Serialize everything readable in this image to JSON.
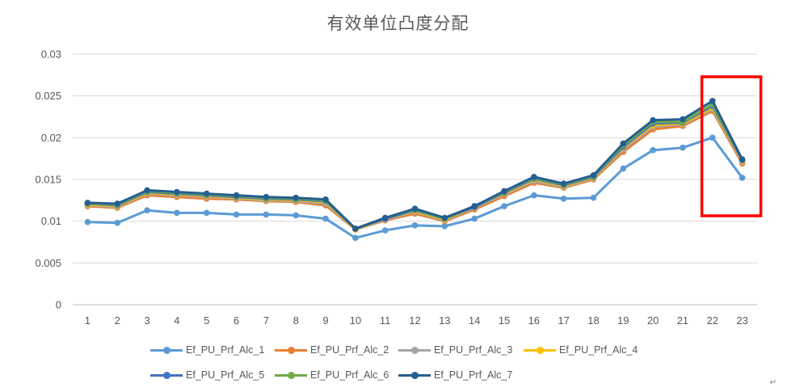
{
  "chart_data": {
    "type": "line",
    "title": "有效单位凸度分配",
    "xlabel": "",
    "ylabel": "",
    "categories": [
      "1",
      "2",
      "3",
      "4",
      "5",
      "6",
      "7",
      "8",
      "9",
      "10",
      "11",
      "12",
      "13",
      "14",
      "15",
      "16",
      "17",
      "18",
      "19",
      "20",
      "21",
      "22",
      "23"
    ],
    "ylim": [
      0,
      0.03
    ],
    "yticks": [
      "0",
      "0.005",
      "0.01",
      "0.015",
      "0.02",
      "0.025",
      "0.03"
    ],
    "grid": true,
    "legend_position": "bottom",
    "highlight": {
      "shape": "rectangle",
      "color": "#ff0000",
      "around_category": "23"
    },
    "series": [
      {
        "name": "Ef_PU_Prf_Alc_1",
        "color": "#5b9bd5",
        "values": [
          0.0099,
          0.0098,
          0.0113,
          0.011,
          0.011,
          0.0108,
          0.0108,
          0.0107,
          0.0103,
          0.008,
          0.0089,
          0.0095,
          0.0094,
          0.0103,
          0.0118,
          0.0131,
          0.0127,
          0.0128,
          0.0163,
          0.0185,
          0.0188,
          0.02,
          0.0152
        ]
      },
      {
        "name": "Ef_PU_Prf_Alc_2",
        "color": "#ed7d31",
        "values": [
          0.0118,
          0.0116,
          0.0131,
          0.0129,
          0.0127,
          0.0126,
          0.0124,
          0.0123,
          0.0119,
          0.009,
          0.0101,
          0.0109,
          0.01,
          0.0114,
          0.013,
          0.0146,
          0.014,
          0.015,
          0.0183,
          0.021,
          0.0214,
          0.0232,
          0.0169
        ]
      },
      {
        "name": "Ef_PU_Prf_Alc_3",
        "color": "#a5a5a5",
        "values": [
          0.0119,
          0.0117,
          0.0133,
          0.0131,
          0.0129,
          0.0127,
          0.0125,
          0.0124,
          0.0121,
          0.009,
          0.0102,
          0.0111,
          0.0101,
          0.0116,
          0.0132,
          0.0148,
          0.0141,
          0.0151,
          0.0186,
          0.0213,
          0.0216,
          0.0234,
          0.0171
        ]
      },
      {
        "name": "Ef_PU_Prf_Alc_4",
        "color": "#ffc000",
        "values": [
          0.012,
          0.0118,
          0.0134,
          0.0132,
          0.013,
          0.0128,
          0.0126,
          0.0125,
          0.0123,
          0.009,
          0.0103,
          0.0112,
          0.0102,
          0.0117,
          0.0133,
          0.015,
          0.0142,
          0.0152,
          0.0188,
          0.0215,
          0.0217,
          0.0236,
          0.0172
        ]
      },
      {
        "name": "Ef_PU_Prf_Alc_5",
        "color": "#4472c4",
        "values": [
          0.0121,
          0.0119,
          0.0135,
          0.0133,
          0.0131,
          0.0129,
          0.0127,
          0.0126,
          0.0124,
          0.0091,
          0.0103,
          0.0113,
          0.0103,
          0.0117,
          0.0134,
          0.0151,
          0.0143,
          0.0153,
          0.0189,
          0.0217,
          0.0218,
          0.0238,
          0.0173
        ]
      },
      {
        "name": "Ef_PU_Prf_Alc_6",
        "color": "#70ad47",
        "values": [
          0.0121,
          0.012,
          0.0136,
          0.0134,
          0.0132,
          0.013,
          0.0128,
          0.0127,
          0.0125,
          0.0091,
          0.0104,
          0.0114,
          0.0103,
          0.0118,
          0.0135,
          0.0152,
          0.0144,
          0.0154,
          0.0191,
          0.0219,
          0.0219,
          0.024,
          0.0174
        ]
      },
      {
        "name": "Ef_PU_Prf_Alc_7",
        "color": "#255e91",
        "values": [
          0.0122,
          0.0121,
          0.0137,
          0.0135,
          0.0133,
          0.0131,
          0.0129,
          0.0128,
          0.0126,
          0.0091,
          0.0104,
          0.0115,
          0.0104,
          0.0118,
          0.0136,
          0.0153,
          0.0145,
          0.0155,
          0.0193,
          0.0221,
          0.0222,
          0.0244,
          0.0174
        ]
      }
    ]
  },
  "page_mark": "↵"
}
